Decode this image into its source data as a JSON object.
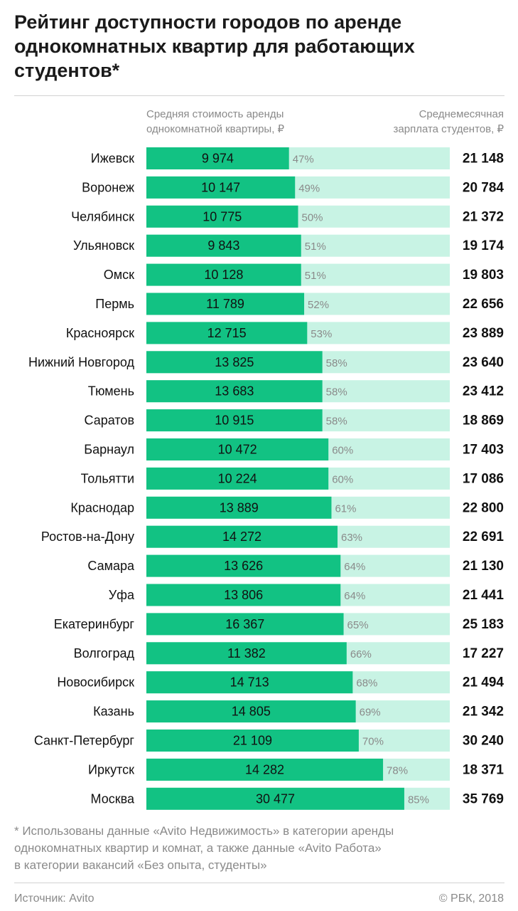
{
  "header": {
    "title": "Рейтинг доступности городов по аренде однокомнатных квартир для работающих студентов*",
    "left_column_label": "Средняя стоимость аренды\nоднокомнатной квартиры, ₽",
    "right_column_label": "Среднемесячная\nзарплата студентов, ₽"
  },
  "colors": {
    "rent_bar": "#12c283",
    "salary_bar": "#c8f3e4",
    "text_dark": "#111111",
    "text_muted": "#8a8a8a"
  },
  "chart_data": {
    "type": "bar",
    "categories": [
      "Ижевск",
      "Воронеж",
      "Челябинск",
      "Ульяновск",
      "Омск",
      "Пермь",
      "Красноярск",
      "Нижний Новгород",
      "Тюмень",
      "Саратов",
      "Барнаул",
      "Тольятти",
      "Краснодар",
      "Ростов-на-Дону",
      "Самара",
      "Уфа",
      "Екатеринбург",
      "Волгоград",
      "Новосибирск",
      "Казань",
      "Санкт-Петербург",
      "Иркутск",
      "Москва"
    ],
    "rent_labels": [
      "9 974",
      "10 147",
      "10 775",
      "9 843",
      "10 128",
      "11 789",
      "12 715",
      "13 825",
      "13 683",
      "10 915",
      "10 472",
      "10 224",
      "13 889",
      "14 272",
      "13 626",
      "13 806",
      "16 367",
      "11 382",
      "14 713",
      "14 805",
      "21 109",
      "14 282",
      "30 477"
    ],
    "rent_values": [
      9974,
      10147,
      10775,
      9843,
      10128,
      11789,
      12715,
      13825,
      13683,
      10915,
      10472,
      10224,
      13889,
      14272,
      13626,
      13806,
      16367,
      11382,
      14713,
      14805,
      21109,
      14282,
      30477
    ],
    "share_labels": [
      "47%",
      "49%",
      "50%",
      "51%",
      "51%",
      "52%",
      "53%",
      "58%",
      "58%",
      "58%",
      "60%",
      "60%",
      "61%",
      "63%",
      "64%",
      "64%",
      "65%",
      "66%",
      "68%",
      "69%",
      "70%",
      "78%",
      "85%"
    ],
    "share_values": [
      47,
      49,
      50,
      51,
      51,
      52,
      53,
      58,
      58,
      58,
      60,
      60,
      61,
      63,
      64,
      64,
      65,
      66,
      68,
      69,
      70,
      78,
      85
    ],
    "salary_labels": [
      "21 148",
      "20 784",
      "21 372",
      "19 174",
      "19 803",
      "22 656",
      "23 889",
      "23 640",
      "23 412",
      "18 869",
      "17 403",
      "17 086",
      "22 800",
      "22 691",
      "21 130",
      "21 441",
      "25 183",
      "17 227",
      "21 494",
      "21 342",
      "30 240",
      "18 371",
      "35 769"
    ],
    "salary_values": [
      21148,
      20784,
      21372,
      19174,
      19803,
      22656,
      23889,
      23640,
      23412,
      18869,
      17403,
      17086,
      22800,
      22691,
      21130,
      21441,
      25183,
      17227,
      21494,
      21342,
      30240,
      18371,
      35769
    ]
  },
  "footer": {
    "footnote": "* Использованы данные «Avito Недвижимость» в категории аренды\n   однокомнатных квартир и комнат, а также данные «Avito Работа»\n   в категории вакансий «Без опыта, студенты»",
    "source": "Источник: Avito",
    "copyright": "© РБК, 2018"
  }
}
